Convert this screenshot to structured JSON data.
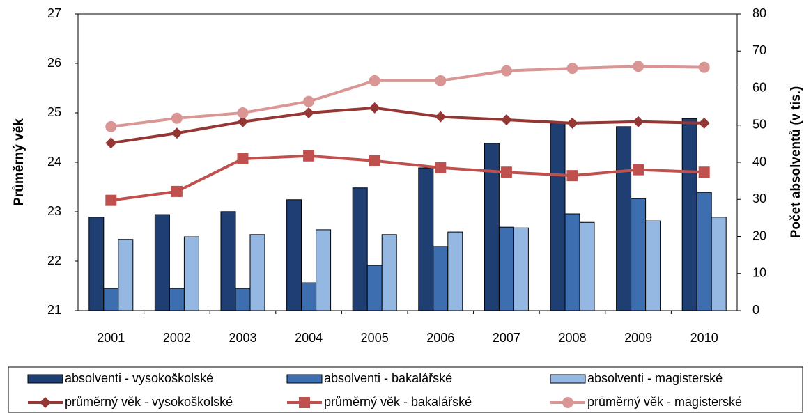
{
  "chart_data": {
    "type": "bar",
    "categories": [
      "2001",
      "2002",
      "2003",
      "2004",
      "2005",
      "2006",
      "2007",
      "2008",
      "2009",
      "2010"
    ],
    "ylabel": "Průměrný věk",
    "y2label": "Počet absolventů (v tis.)",
    "ylim": [
      21,
      27
    ],
    "yticks": [
      21,
      22,
      23,
      24,
      25,
      26,
      27
    ],
    "y2lim": [
      0,
      80
    ],
    "y2ticks": [
      0,
      10,
      20,
      30,
      40,
      50,
      60,
      70,
      80
    ],
    "grid": false,
    "legend": "bottom",
    "series": [
      {
        "name": "absolventi - vysokoškolské",
        "type": "bar",
        "axis": "y2",
        "color": "#1f3f73",
        "values": [
          25.2,
          25.9,
          26.7,
          29.9,
          33.1,
          38.5,
          45.1,
          50.5,
          49.6,
          51.8
        ]
      },
      {
        "name": "absolventi - bakalářské",
        "type": "bar",
        "axis": "y2",
        "color": "#3d6fb0",
        "values": [
          6.0,
          6.0,
          6.0,
          7.5,
          12.2,
          17.3,
          22.5,
          26.1,
          30.2,
          31.9
        ]
      },
      {
        "name": "absolventi - magisterské",
        "type": "bar",
        "axis": "y2",
        "color": "#95b8e3",
        "values": [
          19.2,
          19.9,
          20.5,
          21.8,
          20.5,
          21.2,
          22.3,
          23.8,
          24.2,
          25.2
        ]
      },
      {
        "name": "průměrný věk - vysokoškolské",
        "type": "line",
        "marker": "diamond",
        "color": "#943634",
        "values": [
          24.39,
          24.59,
          24.82,
          25.0,
          25.1,
          24.92,
          24.86,
          24.79,
          24.82,
          24.79
        ]
      },
      {
        "name": "průměrný věk - bakalářské",
        "type": "line",
        "marker": "square",
        "color": "#c0504d",
        "values": [
          23.23,
          23.41,
          24.07,
          24.13,
          24.03,
          23.89,
          23.8,
          23.73,
          23.85,
          23.8
        ]
      },
      {
        "name": "průměrný věk - magisterské",
        "type": "line",
        "marker": "circle",
        "color": "#d99694",
        "values": [
          24.72,
          24.89,
          25.0,
          25.23,
          25.65,
          25.65,
          25.85,
          25.9,
          25.94,
          25.92
        ]
      }
    ]
  }
}
